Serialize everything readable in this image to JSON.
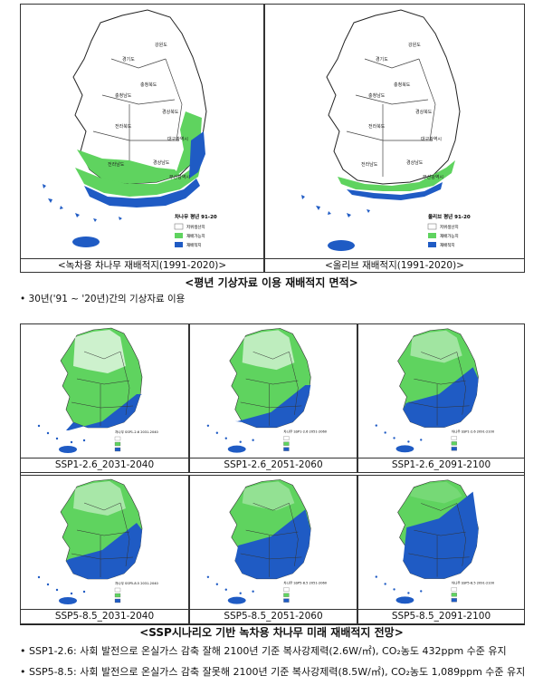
{
  "top_section": {
    "maps": [
      {
        "caption": "<녹차용 차나무 재배적지(1991-2020)>",
        "legend_title": "차나무 평년 91-20",
        "legend_items": [
          "저위생산지",
          "재배가능지",
          "재배적지"
        ]
      },
      {
        "caption": "<올리브 재배적지(1991-2020)>",
        "legend_title": "올리브 평년 91-20",
        "legend_items": [
          "저위생산지",
          "재배가능지",
          "재배적지"
        ]
      }
    ],
    "title": "<평년 기상자료 이용 재배적지 면적>",
    "note": "• 30년('91 ~ '20년)간의 기상자료 이용",
    "region_labels": [
      "강원도",
      "경기도",
      "충청북도",
      "충청남도",
      "경상북도",
      "전라북도",
      "전라남도",
      "경상남도",
      "대구광역시",
      "부산광역시"
    ]
  },
  "bottom_section": {
    "maps": [
      {
        "caption": "SSP1-2.6_2031-2040",
        "legend_title": "차나무 SSP1-2.6 2031-2040"
      },
      {
        "caption": "SSP1-2.6_2051-2060",
        "legend_title": "차나무 SSP1-2.6 2051-2060"
      },
      {
        "caption": "SSP1-2.6_2091-2100",
        "legend_title": "차나무 SSP1-2.6 2091-2100"
      },
      {
        "caption": "SSP5-8.5_2031-2040",
        "legend_title": "차나무 SSP5-8.5 2031-2040"
      },
      {
        "caption": "SSP5-8.5_2051-2060",
        "legend_title": "차나무 SSP5-8.5 2051-2060"
      },
      {
        "caption": "SSP5-8.5_2091-2100",
        "legend_title": "차나무 SSP5-8.5 2091-2100"
      }
    ],
    "title": "<SSP시나리오 기반 녹차용 차나무 미래 재배적지 전망>",
    "bullets": [
      "• SSP1-2.6: 사회 발전으로 온실가스 감축 잘해 2100년 기준 복사강제력(2.6W/㎡), CO₂농도 432ppm 수준 유지",
      "• SSP5-8.5: 사회 발전으로 온실가스 감축 잘못해 2100년 기준 복사강제력(8.5W/㎡), CO₂농도 1,089ppm 수준 유지"
    ]
  },
  "colors": {
    "low_production": "#ffffff",
    "possible": "#5fd35f",
    "suitable": "#1f5bc4",
    "border": "#333333"
  }
}
